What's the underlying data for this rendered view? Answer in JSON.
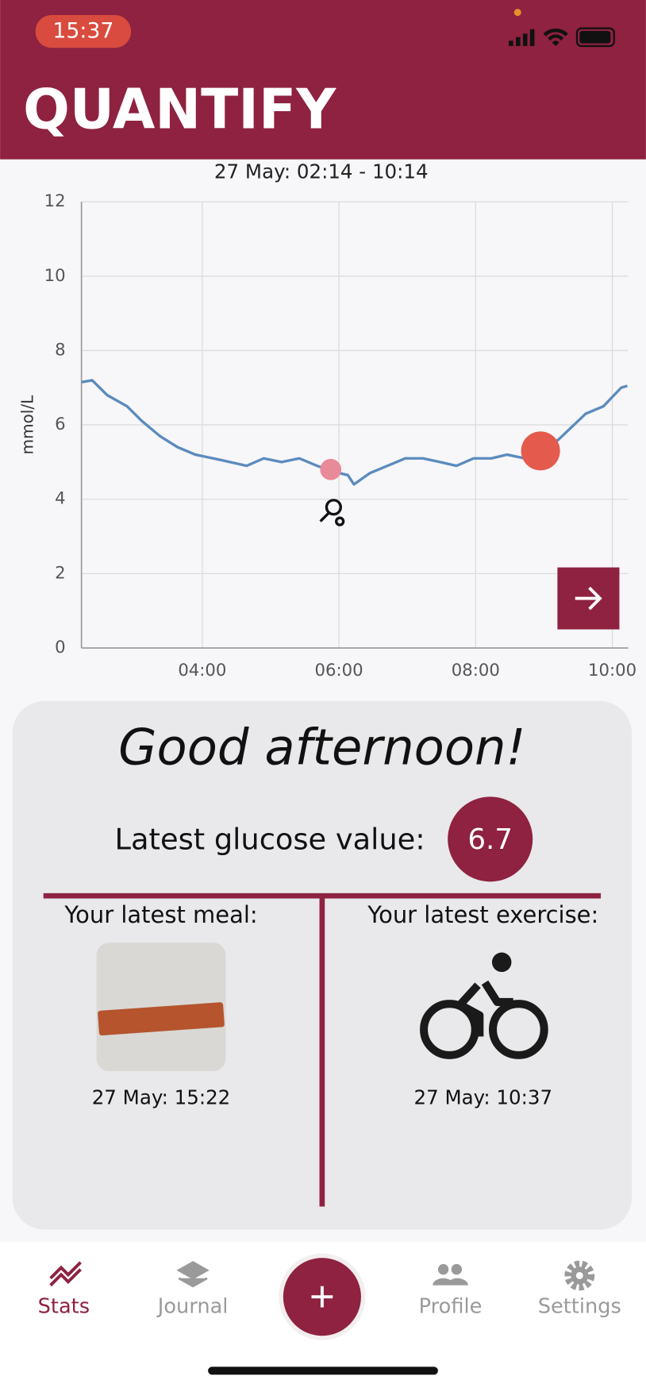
{
  "status_bar": {
    "time": "15:37"
  },
  "header": {
    "title": "QUANTIFY"
  },
  "chart_data": {
    "type": "line",
    "title": "27 May: 02:14 - 10:14",
    "y_label": "mmol/L",
    "x": [
      2.233,
      2.39,
      2.61,
      2.9,
      3.12,
      3.38,
      3.64,
      3.9,
      4.29,
      4.65,
      4.9,
      5.16,
      5.42,
      5.68,
      5.9,
      6.13,
      6.22,
      6.45,
      6.71,
      6.97,
      7.23,
      7.48,
      7.72,
      7.97,
      8.23,
      8.46,
      8.72,
      8.95,
      9.21,
      9.61,
      9.87,
      10.13,
      10.22
    ],
    "values": [
      7.15,
      7.2,
      6.8,
      6.5,
      6.1,
      5.7,
      5.4,
      5.2,
      5.05,
      4.9,
      5.1,
      5.0,
      5.1,
      4.9,
      4.75,
      4.65,
      4.4,
      4.7,
      4.9,
      5.1,
      5.1,
      5.0,
      4.9,
      5.1,
      5.1,
      5.2,
      5.1,
      5.3,
      5.6,
      6.3,
      6.5,
      7.0,
      7.05
    ],
    "color": "#5b8bbd",
    "points": [
      {
        "x": 5.88,
        "y": 4.8,
        "color": "#e88a98"
      },
      {
        "x": 8.95,
        "y": 5.3,
        "color": "#e45a4c"
      }
    ],
    "xlim": [
      2.233,
      10.233
    ],
    "xticks": [
      {
        "value": 4,
        "label": "04:00"
      },
      {
        "value": 6,
        "label": "06:00"
      },
      {
        "value": 8,
        "label": "08:00"
      },
      {
        "value": 10,
        "label": "10:00"
      }
    ],
    "ylim": [
      0,
      12
    ],
    "yticks": [
      0,
      2,
      4,
      6,
      8,
      10,
      12
    ],
    "grid": true
  },
  "card": {
    "greeting": "Good afternoon!",
    "glucose_label": "Latest glucose value:",
    "glucose_value": 6.7,
    "meal_label": "Your latest meal:",
    "meal_time": "27 May: 15:22",
    "exercise_label": "Your latest exercise:",
    "exercise_time": "27 May: 10:37"
  },
  "nav": {
    "items": [
      "Stats",
      "Journal",
      "Profile",
      "Settings"
    ]
  }
}
